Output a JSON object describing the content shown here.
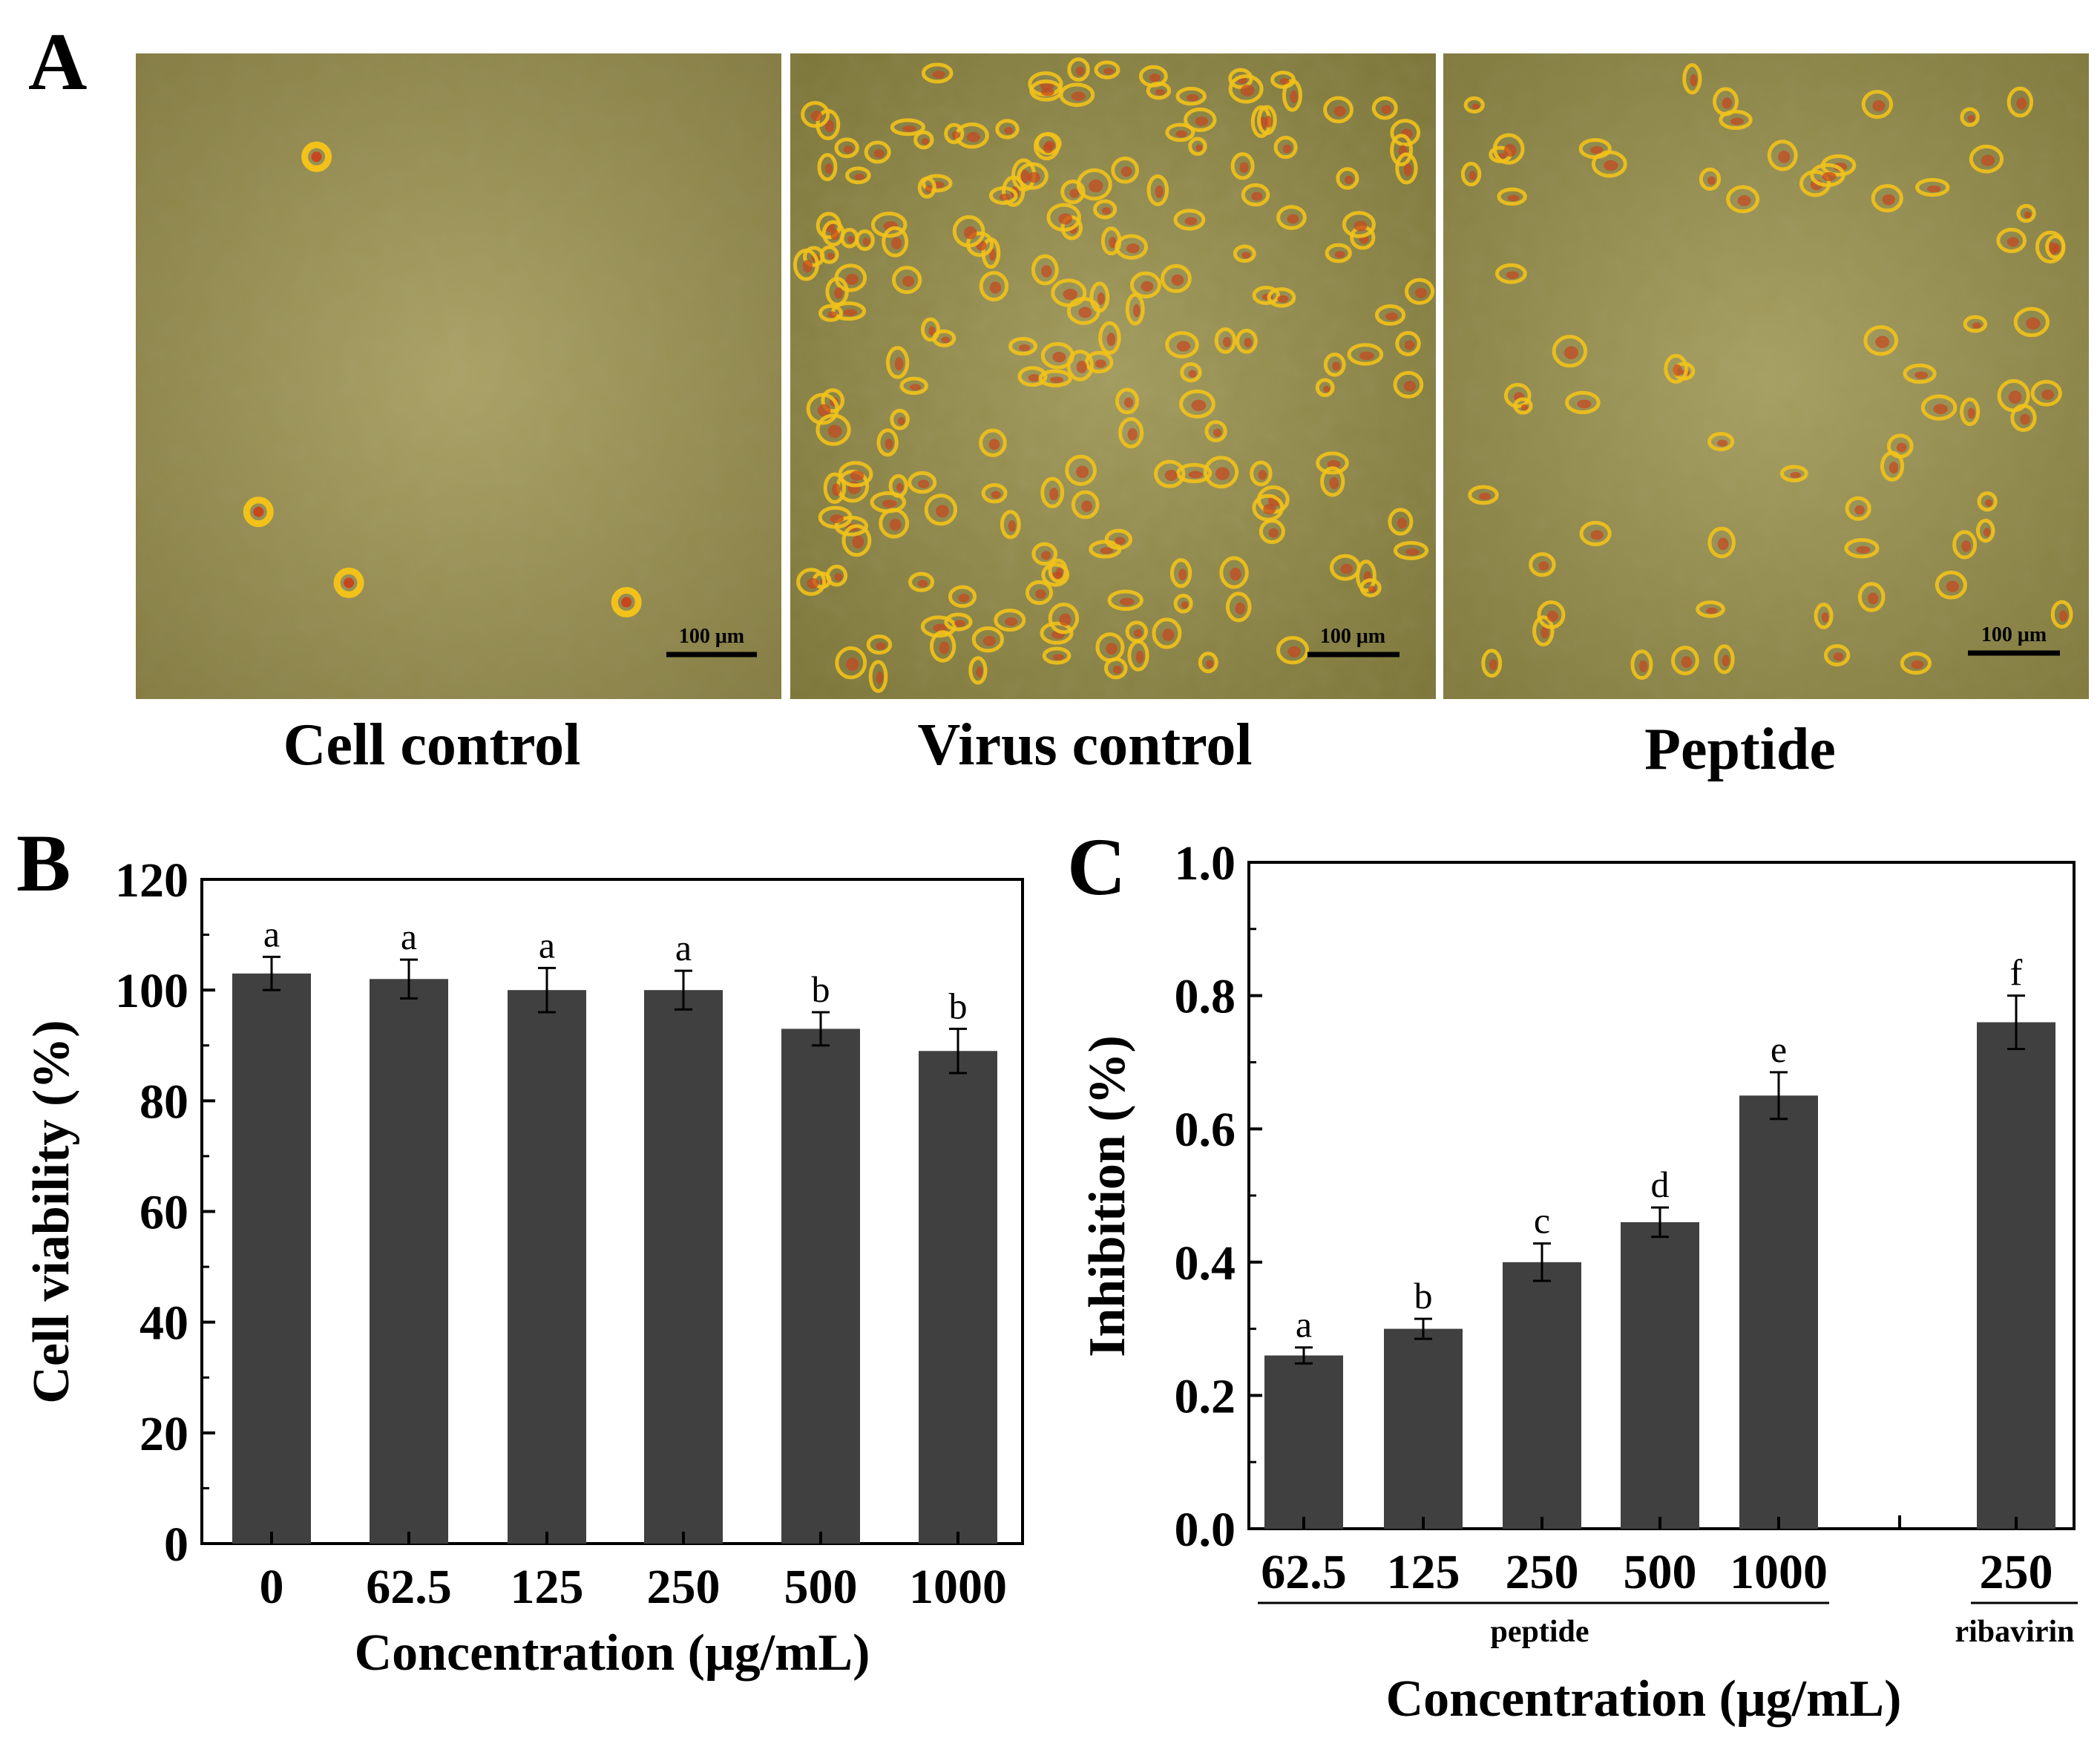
{
  "panels": {
    "A": {
      "letter": "A"
    },
    "B": {
      "letter": "B"
    },
    "C": {
      "letter": "C"
    }
  },
  "micrographs": [
    {
      "caption": "Cell control",
      "scale_bar": "100 μm",
      "tone": "#9a9050",
      "cells": "sparse"
    },
    {
      "caption": "Virus control",
      "scale_bar": "100 μm",
      "tone": "#8c8440",
      "cells": "dense"
    },
    {
      "caption": "Peptide",
      "scale_bar": "100 μm",
      "tone": "#948c48",
      "cells": "medium"
    }
  ],
  "colors": {
    "bar": "#404040",
    "cell_highlight": "#f2c21a",
    "cell_rim": "#c8461e"
  },
  "chart_data": [
    {
      "panel": "B",
      "type": "bar",
      "categories": [
        "0",
        "62.5",
        "125",
        "250",
        "500",
        "1000"
      ],
      "values": [
        103,
        102,
        100,
        100,
        93,
        89
      ],
      "errors": [
        3,
        3.5,
        4,
        3.5,
        3,
        4
      ],
      "significance": [
        "a",
        "a",
        "a",
        "a",
        "b",
        "b"
      ],
      "ylim": [
        0,
        120
      ],
      "yticks": [
        0,
        20,
        40,
        60,
        80,
        100,
        120
      ],
      "ylabel": "Cell viability (%)",
      "xlabel": "Concentration (μg/mL)",
      "ytick_decimals": 0
    },
    {
      "panel": "C",
      "type": "bar",
      "categories": [
        "62.5",
        "125",
        "250",
        "500",
        "1000",
        "250"
      ],
      "groups": [
        "peptide",
        "peptide",
        "peptide",
        "peptide",
        "peptide",
        "ribavirin"
      ],
      "group_labels": [
        "peptide",
        "ribavirin"
      ],
      "values": [
        0.26,
        0.3,
        0.4,
        0.46,
        0.65,
        0.76
      ],
      "errors": [
        0.012,
        0.015,
        0.028,
        0.022,
        0.035,
        0.04
      ],
      "significance": [
        "a",
        "b",
        "c",
        "d",
        "e",
        "f"
      ],
      "ylim": [
        0,
        1.0
      ],
      "yticks": [
        0.0,
        0.2,
        0.4,
        0.6,
        0.8,
        1.0
      ],
      "ylabel": "Inhibition (%)",
      "xlabel": "Concentration (μg/mL)",
      "ytick_decimals": 1
    }
  ]
}
